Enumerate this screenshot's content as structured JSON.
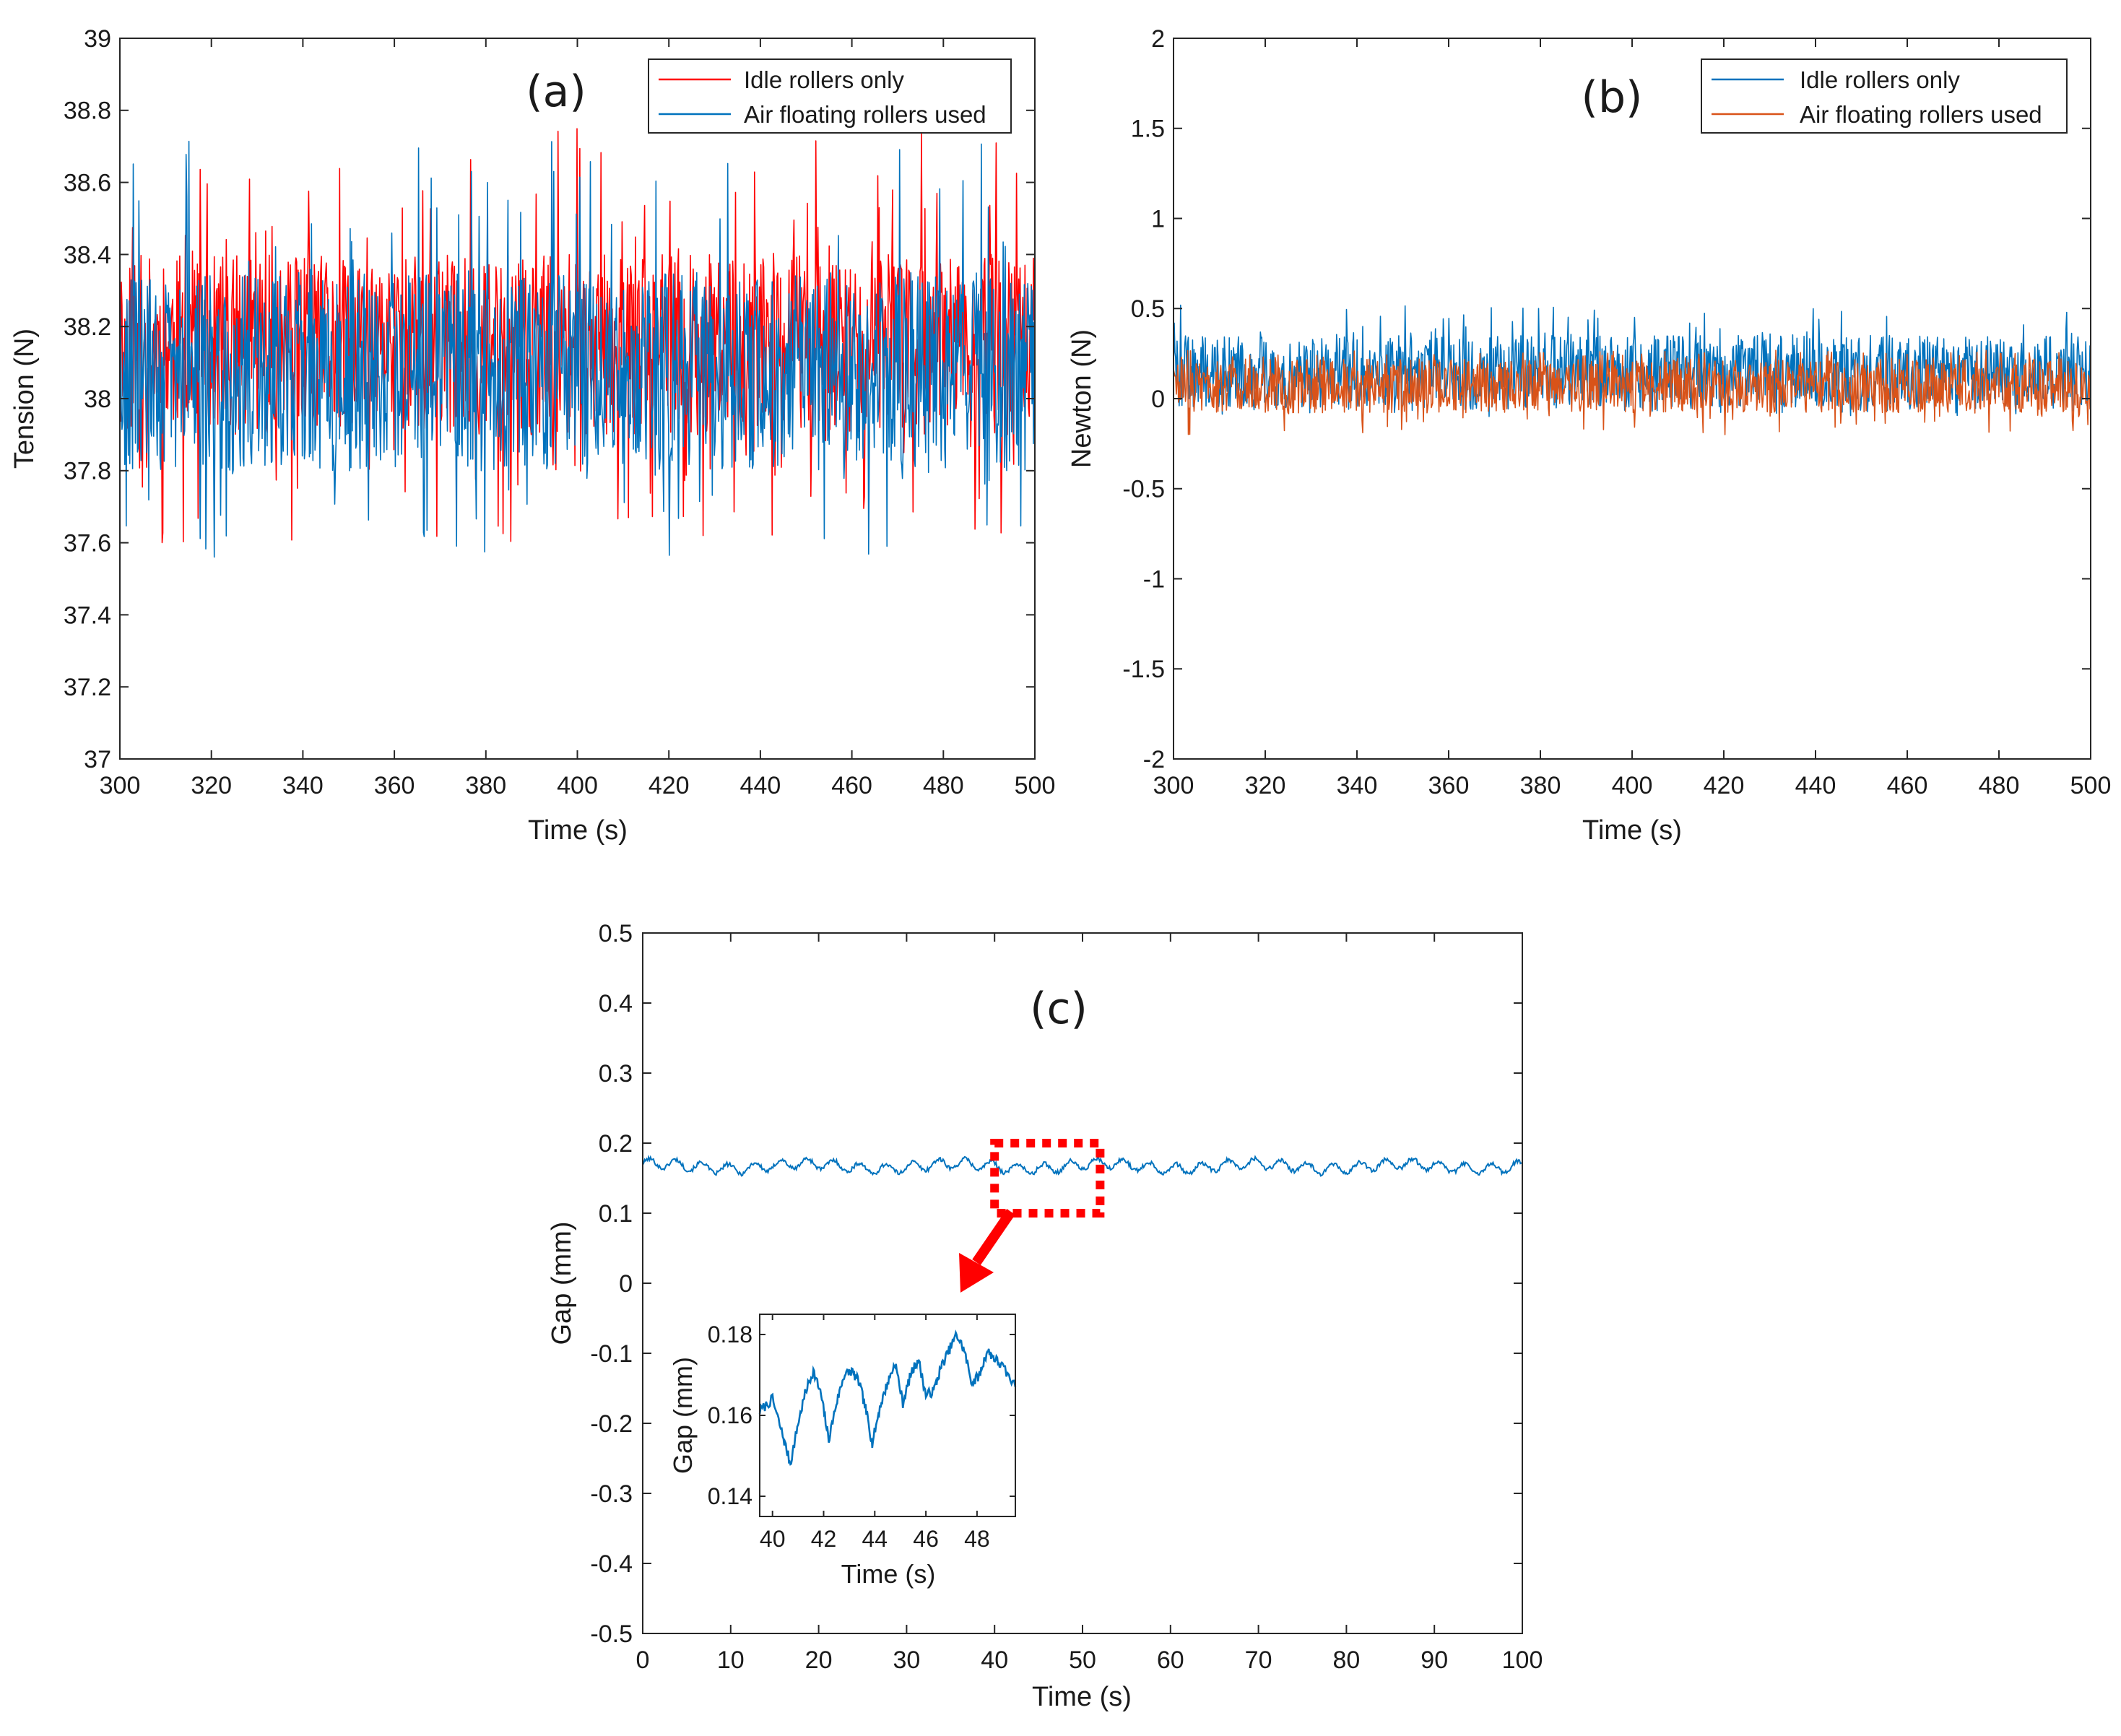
{
  "chart_data": [
    {
      "type": "line",
      "panel_label": "(a)",
      "xlabel": "Time (s)",
      "ylabel": "Tension (N)",
      "xlim": [
        300,
        500
      ],
      "ylim": [
        37,
        39
      ],
      "xticks": [
        "300",
        "320",
        "340",
        "360",
        "380",
        "400",
        "420",
        "440",
        "460",
        "480",
        "500"
      ],
      "yticks": [
        "37",
        "37.2",
        "37.4",
        "37.6",
        "37.8",
        "38",
        "38.2",
        "38.4",
        "38.6",
        "38.8",
        "39"
      ],
      "legend": {
        "position": "top-right",
        "entries": [
          "Idle rollers only",
          "Air floating rollers used"
        ]
      },
      "series": [
        {
          "name": "Idle rollers only",
          "color": "#ff0000",
          "mean": 38.1,
          "typical_range": [
            37.9,
            38.4
          ],
          "extremes": [
            37.6,
            38.75
          ]
        },
        {
          "name": "Air floating rollers used",
          "color": "#0072bd",
          "mean": 38.1,
          "typical_range": [
            37.8,
            38.35
          ],
          "extremes": [
            37.56,
            38.72
          ]
        }
      ]
    },
    {
      "type": "line",
      "panel_label": "(b)",
      "xlabel": "Time (s)",
      "ylabel": "Newton (N)",
      "xlim": [
        300,
        500
      ],
      "ylim": [
        -2,
        2
      ],
      "xticks": [
        "300",
        "320",
        "340",
        "360",
        "380",
        "400",
        "420",
        "440",
        "460",
        "480",
        "500"
      ],
      "yticks": [
        "-2",
        "-1.5",
        "-1",
        "-0.5",
        "0",
        "0.5",
        "1",
        "1.5",
        "2"
      ],
      "legend": {
        "position": "top-right",
        "entries": [
          "Idle rollers only",
          "Air floating rollers used"
        ]
      },
      "series": [
        {
          "name": "Idle rollers only",
          "color": "#0072bd",
          "mean": 0.15,
          "typical_range": [
            -0.05,
            0.35
          ],
          "extremes": [
            -0.1,
            0.52
          ]
        },
        {
          "name": "Air floating rollers used",
          "color": "#d95319",
          "mean": 0.08,
          "typical_range": [
            -0.08,
            0.22
          ],
          "extremes": [
            -0.2,
            0.27
          ]
        }
      ]
    },
    {
      "type": "line",
      "panel_label": "(c)",
      "xlabel": "Time (s)",
      "ylabel": "Gap (mm)",
      "xlim": [
        0,
        100
      ],
      "ylim": [
        -0.5,
        0.5
      ],
      "xticks": [
        "0",
        "10",
        "20",
        "30",
        "40",
        "50",
        "60",
        "70",
        "80",
        "90",
        "100"
      ],
      "yticks": [
        "-0.5",
        "-0.4",
        "-0.3",
        "-0.2",
        "-0.1",
        "0",
        "0.1",
        "0.2",
        "0.3",
        "0.4",
        "0.5"
      ],
      "series": [
        {
          "name": "Gap",
          "color": "#0072bd",
          "mean": 0.167,
          "typical_range": [
            0.152,
            0.18
          ]
        }
      ],
      "highlight": {
        "x_range": [
          40,
          52
        ],
        "y_range": [
          0.1,
          0.2
        ],
        "color": "#ff0000",
        "style": "dotted box with arrow to inset"
      },
      "inset": {
        "xlabel": "Time (s)",
        "ylabel": "Gap (mm)",
        "xlim": [
          39.5,
          49.5
        ],
        "ylim": [
          0.135,
          0.185
        ],
        "xticks": [
          "40",
          "42",
          "44",
          "46",
          "48"
        ],
        "yticks": [
          "0.14",
          "0.16",
          "0.18"
        ],
        "series": [
          {
            "name": "Gap (zoom)",
            "color": "#0072bd",
            "x": [
              39.5,
              40.0,
              40.4,
              40.7,
              41.0,
              41.3,
              41.6,
              41.9,
              42.2,
              42.5,
              42.8,
              43.1,
              43.4,
              43.7,
              43.9,
              44.2,
              44.5,
              44.8,
              45.1,
              45.4,
              45.7,
              46.0,
              46.3,
              46.6,
              46.9,
              47.2,
              47.5,
              47.8,
              48.1,
              48.4,
              48.7,
              49.0,
              49.5
            ],
            "y": [
              0.161,
              0.164,
              0.155,
              0.148,
              0.158,
              0.166,
              0.171,
              0.165,
              0.154,
              0.163,
              0.17,
              0.171,
              0.168,
              0.16,
              0.153,
              0.162,
              0.168,
              0.173,
              0.163,
              0.17,
              0.174,
              0.165,
              0.166,
              0.172,
              0.176,
              0.18,
              0.176,
              0.168,
              0.17,
              0.176,
              0.174,
              0.172,
              0.167
            ]
          }
        ]
      }
    }
  ]
}
